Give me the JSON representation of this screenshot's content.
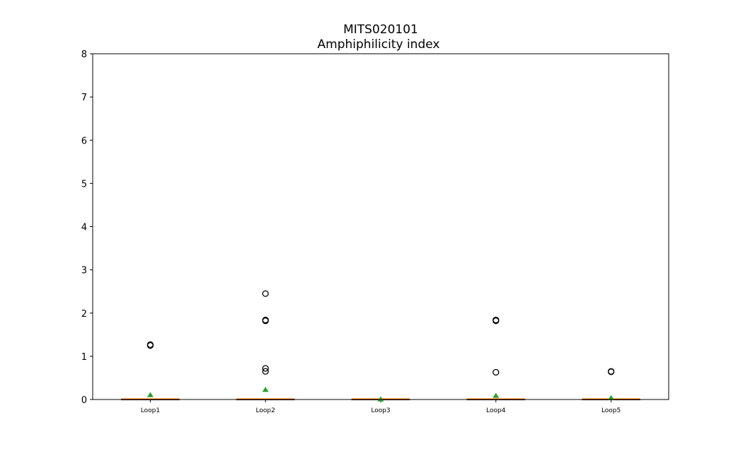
{
  "chart_data": {
    "type": "boxplot",
    "title": "MITS020101",
    "subtitle": "Amphiphilicity index",
    "xlabel": "",
    "ylabel": "",
    "ylim": [
      0,
      8
    ],
    "yticks": [
      "0",
      "1",
      "2",
      "3",
      "4",
      "5",
      "6",
      "7",
      "8"
    ],
    "grid": false,
    "categories": [
      "Loop1",
      "Loop2",
      "Loop3",
      "Loop4",
      "Loop5"
    ],
    "boxes": [
      {
        "category": "Loop1",
        "q1": 0,
        "median": 0,
        "q3": 0,
        "whisker_low": 0,
        "whisker_high": 0,
        "mean": 0.1,
        "outliers": [
          1.25,
          1.27
        ]
      },
      {
        "category": "Loop2",
        "q1": 0,
        "median": 0,
        "q3": 0,
        "whisker_low": 0,
        "whisker_high": 0,
        "mean": 0.22,
        "outliers": [
          2.45,
          1.84,
          1.82,
          0.72,
          0.65
        ]
      },
      {
        "category": "Loop3",
        "q1": 0,
        "median": 0,
        "q3": 0,
        "whisker_low": 0,
        "whisker_high": 0,
        "mean": 0.0,
        "outliers": []
      },
      {
        "category": "Loop4",
        "q1": 0,
        "median": 0,
        "q3": 0,
        "whisker_low": 0,
        "whisker_high": 0,
        "mean": 0.08,
        "outliers": [
          1.84,
          1.82,
          0.63
        ]
      },
      {
        "category": "Loop5",
        "q1": 0,
        "median": 0,
        "q3": 0,
        "whisker_low": 0,
        "whisker_high": 0,
        "mean": 0.03,
        "outliers": [
          0.65,
          0.64
        ]
      }
    ],
    "colors": {
      "median": "#ff7f0e",
      "mean": "#2ca02c",
      "outlier": "#000000",
      "axes": "#000000"
    }
  }
}
